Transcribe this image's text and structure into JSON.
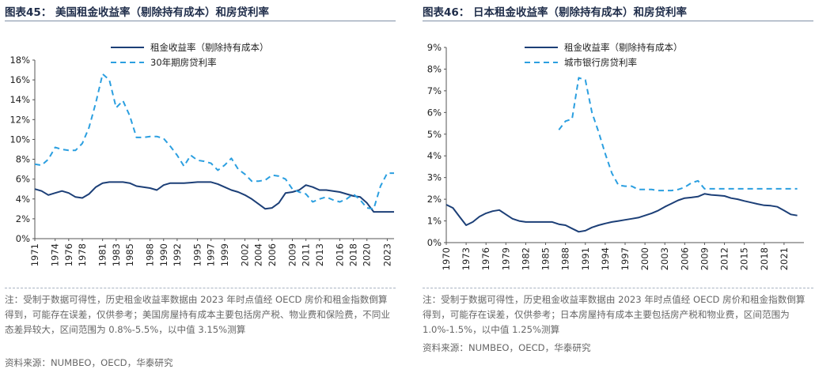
{
  "left": {
    "title": "图表45： 美国租金收益率（剔除持有成本）和房贷利率",
    "note": "注：受制于数据可得性，历史租金收益率数据由 2023 年时点值经 OECD 房价和租金指数倒算得到，可能存在误差，仅供参考；美国房屋持有成本主要包括房产税、物业费和保险费，不同业态差异较大，区间范围为 0.8%-5.5%，以中值 3.15%测算",
    "source": "资料来源：NUMBEO，OECD，华泰研究"
  },
  "right": {
    "title": "图表46： 日本租金收益率（剔除持有成本）和房贷利率",
    "note": "注：受制于数据可得性，历史租金收益率数据由 2023 年时点值经 OECD 房价和租金指数倒算得到，可能存在误差，仅供参考；日本房屋持有成本主要包括房产税和物业费，区间范围为 1.0%-1.5%，以中值 1.25%测算",
    "source": "资料来源：NUMBEO，OECD，华泰研究"
  },
  "colors": {
    "solid": "#1c3f77",
    "dashed": "#2b9fe0",
    "axis": "#555555"
  },
  "chart_data": [
    {
      "type": "line",
      "xlim": [
        1971,
        2024
      ],
      "ylim": [
        0,
        18
      ],
      "ytick_labels": [
        "0%",
        "2%",
        "4%",
        "6%",
        "8%",
        "10%",
        "12%",
        "14%",
        "16%",
        "18%"
      ],
      "xtick_labels": [
        "1971",
        "1974",
        "1976",
        "1978",
        "1981",
        "1983",
        "1985",
        "1988",
        "1990",
        "1992",
        "1995",
        "1997",
        "1999",
        "2002",
        "2004",
        "2006",
        "2009",
        "2011",
        "2013",
        "2016",
        "2018",
        "2020",
        "2023"
      ],
      "grid": false,
      "legend_position": "top-center",
      "series": [
        {
          "name": "租金收益率（剔除持有成本）",
          "style": "solid",
          "x": [
            1971,
            1972,
            1973,
            1974,
            1975,
            1976,
            1977,
            1978,
            1979,
            1980,
            1981,
            1982,
            1983,
            1984,
            1985,
            1986,
            1987,
            1988,
            1989,
            1990,
            1991,
            1992,
            1993,
            1994,
            1995,
            1996,
            1997,
            1998,
            1999,
            2000,
            2001,
            2002,
            2003,
            2004,
            2005,
            2006,
            2007,
            2008,
            2009,
            2010,
            2011,
            2012,
            2013,
            2014,
            2015,
            2016,
            2017,
            2018,
            2019,
            2020,
            2021,
            2022,
            2023,
            2024
          ],
          "y": [
            5.0,
            4.8,
            4.4,
            4.6,
            4.8,
            4.6,
            4.2,
            4.1,
            4.5,
            5.2,
            5.6,
            5.7,
            5.7,
            5.7,
            5.6,
            5.3,
            5.2,
            5.1,
            4.9,
            5.4,
            5.6,
            5.6,
            5.6,
            5.65,
            5.7,
            5.7,
            5.7,
            5.5,
            5.2,
            4.9,
            4.7,
            4.4,
            4.0,
            3.5,
            3.0,
            3.1,
            3.6,
            4.6,
            4.7,
            4.9,
            5.4,
            5.2,
            4.9,
            4.9,
            4.8,
            4.7,
            4.5,
            4.3,
            4.2,
            3.6,
            2.7,
            2.7,
            2.7,
            2.7
          ]
        },
        {
          "name": "30年期房贷利率",
          "style": "dashed",
          "x": [
            1971,
            1972,
            1973,
            1974,
            1975,
            1976,
            1977,
            1978,
            1979,
            1980,
            1981,
            1982,
            1983,
            1984,
            1985,
            1986,
            1987,
            1988,
            1989,
            1990,
            1991,
            1992,
            1993,
            1994,
            1995,
            1996,
            1997,
            1998,
            1999,
            2000,
            2001,
            2002,
            2003,
            2004,
            2005,
            2006,
            2007,
            2008,
            2009,
            2010,
            2011,
            2012,
            2013,
            2014,
            2015,
            2016,
            2017,
            2018,
            2019,
            2020,
            2021,
            2022,
            2023,
            2024
          ],
          "y": [
            7.5,
            7.4,
            8.0,
            9.2,
            9.0,
            8.9,
            8.9,
            9.6,
            11.2,
            13.7,
            16.6,
            16.0,
            13.2,
            13.9,
            12.4,
            10.2,
            10.2,
            10.3,
            10.3,
            10.1,
            9.3,
            8.4,
            7.3,
            8.4,
            7.9,
            7.8,
            7.6,
            6.9,
            7.4,
            8.1,
            7.0,
            6.5,
            5.8,
            5.8,
            5.9,
            6.4,
            6.3,
            6.0,
            5.0,
            4.7,
            4.5,
            3.7,
            4.0,
            4.2,
            3.9,
            3.7,
            4.0,
            4.5,
            3.9,
            3.1,
            3.0,
            5.3,
            6.6,
            6.6
          ]
        }
      ]
    },
    {
      "type": "line",
      "xlim": [
        1970,
        2024
      ],
      "ylim": [
        0,
        9
      ],
      "ytick_labels": [
        "0%",
        "1%",
        "2%",
        "3%",
        "4%",
        "5%",
        "6%",
        "7%",
        "8%",
        "9%"
      ],
      "xtick_labels": [
        "1970",
        "1973",
        "1976",
        "1979",
        "1982",
        "1985",
        "1988",
        "1991",
        "1994",
        "1997",
        "2000",
        "2003",
        "2006",
        "2009",
        "2012",
        "2015",
        "2018",
        "2021"
      ],
      "grid": false,
      "legend_position": "top-center",
      "series": [
        {
          "name": "租金收益率（剔除持有成本）",
          "style": "solid",
          "x": [
            1970,
            1971,
            1972,
            1973,
            1974,
            1975,
            1976,
            1977,
            1978,
            1979,
            1980,
            1981,
            1982,
            1983,
            1984,
            1985,
            1986,
            1987,
            1988,
            1989,
            1990,
            1991,
            1992,
            1993,
            1994,
            1995,
            1996,
            1997,
            1998,
            1999,
            2000,
            2001,
            2002,
            2003,
            2004,
            2005,
            2006,
            2007,
            2008,
            2009,
            2010,
            2011,
            2012,
            2013,
            2014,
            2015,
            2016,
            2017,
            2018,
            2019,
            2020,
            2021,
            2022,
            2023
          ],
          "y": [
            1.75,
            1.6,
            1.2,
            0.8,
            0.95,
            1.2,
            1.35,
            1.45,
            1.5,
            1.3,
            1.1,
            1.0,
            0.95,
            0.95,
            0.95,
            0.95,
            0.95,
            0.85,
            0.8,
            0.65,
            0.5,
            0.55,
            0.7,
            0.8,
            0.88,
            0.95,
            1.0,
            1.05,
            1.1,
            1.15,
            1.25,
            1.35,
            1.48,
            1.65,
            1.8,
            1.95,
            2.05,
            2.08,
            2.12,
            2.25,
            2.2,
            2.18,
            2.15,
            2.05,
            2.0,
            1.92,
            1.85,
            1.78,
            1.72,
            1.7,
            1.65,
            1.48,
            1.3,
            1.25
          ]
        },
        {
          "name": "城市银行房贷利率",
          "style": "dashed",
          "x": [
            1987,
            1988,
            1989,
            1990,
            1991,
            1992,
            1993,
            1994,
            1995,
            1996,
            1997,
            1998,
            1999,
            2000,
            2001,
            2002,
            2003,
            2004,
            2005,
            2006,
            2007,
            2008,
            2009,
            2010,
            2011,
            2012,
            2013,
            2014,
            2015,
            2016,
            2017,
            2018,
            2019,
            2020,
            2021,
            2022,
            2023
          ],
          "y": [
            5.2,
            5.6,
            5.7,
            7.6,
            7.5,
            6.0,
            5.1,
            4.1,
            3.2,
            2.65,
            2.6,
            2.6,
            2.45,
            2.45,
            2.45,
            2.4,
            2.4,
            2.4,
            2.45,
            2.55,
            2.75,
            2.85,
            2.48,
            2.48,
            2.48,
            2.48,
            2.48,
            2.48,
            2.48,
            2.48,
            2.48,
            2.48,
            2.48,
            2.48,
            2.48,
            2.48,
            2.48
          ]
        }
      ]
    }
  ]
}
